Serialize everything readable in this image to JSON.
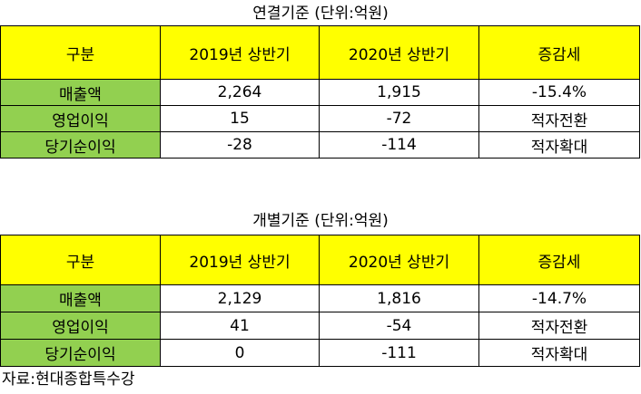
{
  "colors": {
    "header_bg": "#ffff00",
    "label_bg": "#92d050",
    "border": "#000000",
    "text": "#000000"
  },
  "tables": [
    {
      "caption": "연결기준 (단위:억원)",
      "headers": [
        "구분",
        "2019년 상반기",
        "2020년 상반기",
        "증감세"
      ],
      "rows": [
        [
          "매출액",
          "2,264",
          "1,915",
          "-15.4%"
        ],
        [
          "영업이익",
          "15",
          "-72",
          "적자전환"
        ],
        [
          "당기순이익",
          "-28",
          "-114",
          "적자확대"
        ]
      ]
    },
    {
      "caption": "개별기준 (단위:억원)",
      "headers": [
        "구분",
        "2019년 상반기",
        "2020년 상반기",
        "증감세"
      ],
      "rows": [
        [
          "매출액",
          "2,129",
          "1,816",
          "-14.7%"
        ],
        [
          "영업이익",
          "41",
          "-54",
          "적자전환"
        ],
        [
          "당기순이익",
          "0",
          "-111",
          "적자확대"
        ]
      ]
    }
  ],
  "source": "자료:현대종합특수강"
}
